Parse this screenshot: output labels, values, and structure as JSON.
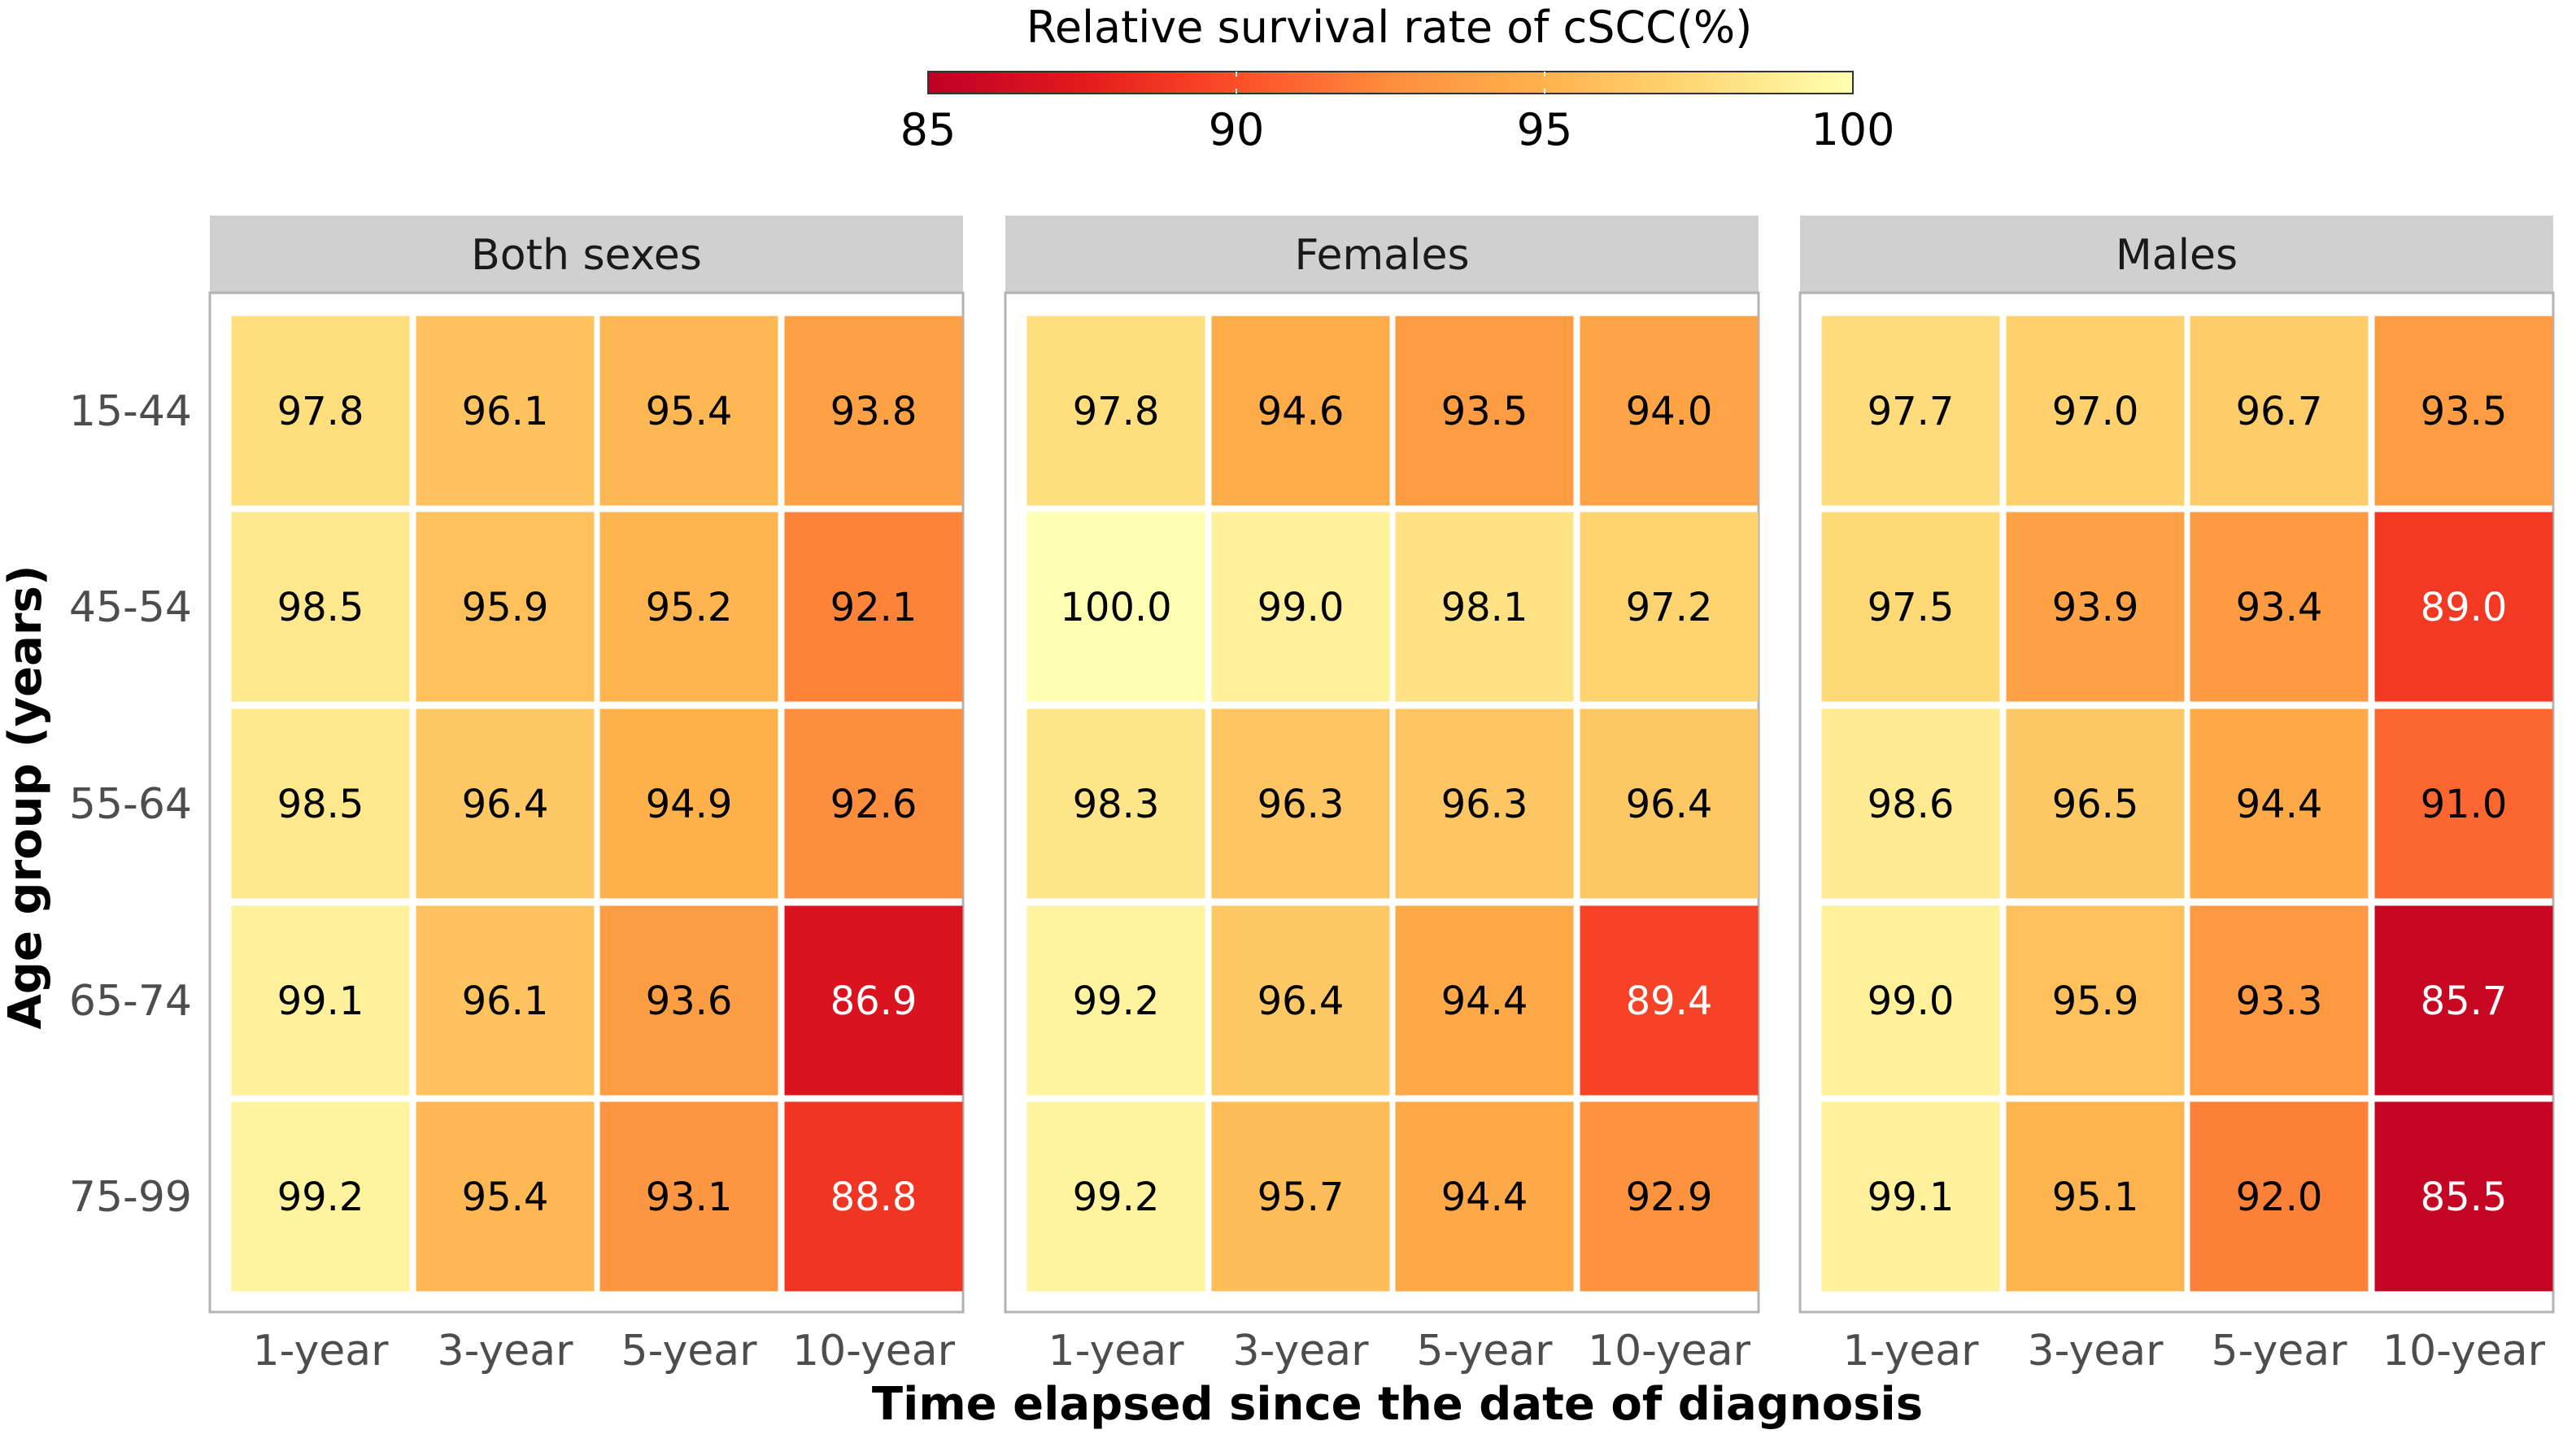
{
  "chart_data": {
    "type": "heatmap",
    "legend": {
      "title": "Relative survival rate of cSCC(%)",
      "range": [
        85,
        100
      ],
      "ticks": [
        "85",
        "90",
        "95",
        "100"
      ],
      "colors": [
        "#bd0026",
        "#e31a1c",
        "#fc4e2a",
        "#fd8d3c",
        "#feb24c",
        "#fed976",
        "#ffffb2"
      ]
    },
    "x_label": "Time elapsed since the date of diagnosis",
    "y_label": "Age group (years)",
    "categories_x": [
      "1-year",
      "3-year",
      "5-year",
      "10-year"
    ],
    "categories_y": [
      "15-44",
      "45-54",
      "55-64",
      "65-74",
      "75-99"
    ],
    "panels": [
      {
        "title": "Both sexes",
        "values": [
          [
            "97.8",
            "96.1",
            "95.4",
            "93.8"
          ],
          [
            "98.5",
            "95.9",
            "95.2",
            "92.1"
          ],
          [
            "98.5",
            "96.4",
            "94.9",
            "92.6"
          ],
          [
            "99.1",
            "96.1",
            "93.6",
            "86.9"
          ],
          [
            "99.2",
            "95.4",
            "93.1",
            "88.8"
          ]
        ]
      },
      {
        "title": "Females",
        "values": [
          [
            "97.8",
            "94.6",
            "93.5",
            "94.0"
          ],
          [
            "100.0",
            "99.0",
            "98.1",
            "97.2"
          ],
          [
            "98.3",
            "96.3",
            "96.3",
            "96.4"
          ],
          [
            "99.2",
            "96.4",
            "94.4",
            "89.4"
          ],
          [
            "99.2",
            "95.7",
            "94.4",
            "92.9"
          ]
        ]
      },
      {
        "title": "Males",
        "values": [
          [
            "97.7",
            "97.0",
            "96.7",
            "93.5"
          ],
          [
            "97.5",
            "93.9",
            "93.4",
            "89.0"
          ],
          [
            "98.6",
            "96.5",
            "94.4",
            "91.0"
          ],
          [
            "99.0",
            "95.9",
            "93.3",
            "85.7"
          ],
          [
            "99.1",
            "95.1",
            "92.0",
            "85.5"
          ]
        ]
      }
    ]
  }
}
